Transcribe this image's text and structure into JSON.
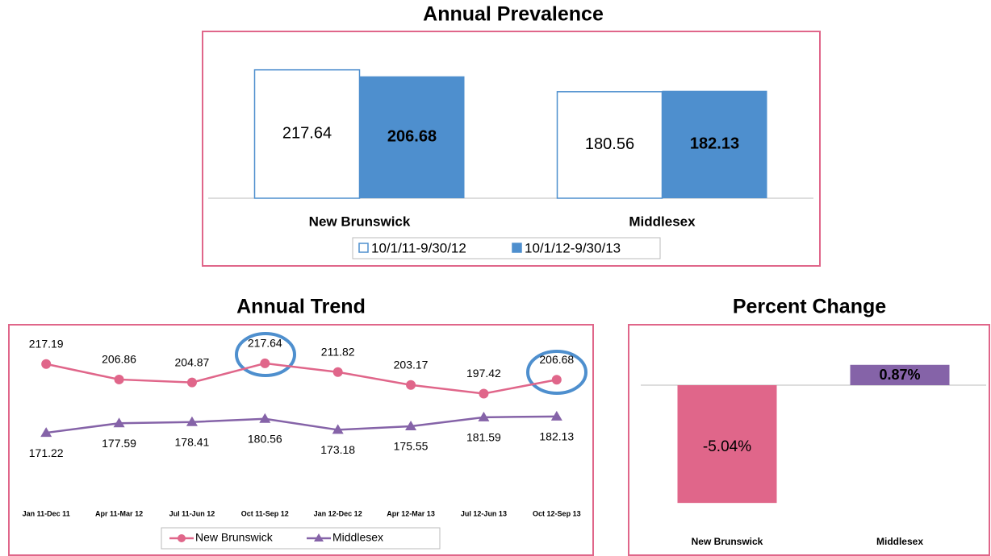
{
  "chart_data": [
    {
      "type": "bar",
      "title": "Annual Prevalence",
      "categories": [
        "New Brunswick",
        "Middlesex"
      ],
      "series": [
        {
          "name": "10/1/11-9/30/12",
          "color": "#4e8fce",
          "values": [
            217.64,
            180.56
          ]
        },
        {
          "name": "10/1/12-9/30/13",
          "color": "#4e8fce",
          "values": [
            206.68,
            182.13
          ]
        }
      ],
      "ylim": [
        0,
        250
      ]
    },
    {
      "type": "line",
      "title": "Annual Trend",
      "categories": [
        "Jan 11-Dec 11",
        "Apr 11-Mar 12",
        "Jul 11-Jun 12",
        "Oct 11-Sep 12",
        "Jan 12-Dec 12",
        "Apr 12-Mar 13",
        "Jul 12-Jun 13",
        "Oct 12-Sep 13"
      ],
      "series": [
        {
          "name": "New Brunswick",
          "color": "#e0668a",
          "values": [
            217.19,
            206.86,
            204.87,
            217.64,
            211.82,
            203.17,
            197.42,
            206.68
          ]
        },
        {
          "name": "Middlesex",
          "color": "#8563a8",
          "values": [
            171.22,
            177.59,
            178.41,
            180.56,
            173.18,
            175.55,
            181.59,
            182.13
          ]
        }
      ],
      "ylim": [
        140,
        230
      ]
    },
    {
      "type": "bar",
      "title": "Percent Change",
      "categories": [
        "New Brunswick",
        "Middlesex"
      ],
      "values": [
        -5.04,
        0.87
      ],
      "value_labels": [
        "-5.04%",
        "0.87%"
      ],
      "colors": [
        "#e0668a",
        "#8563a8"
      ],
      "ylim": [
        -5.5,
        2
      ]
    }
  ]
}
